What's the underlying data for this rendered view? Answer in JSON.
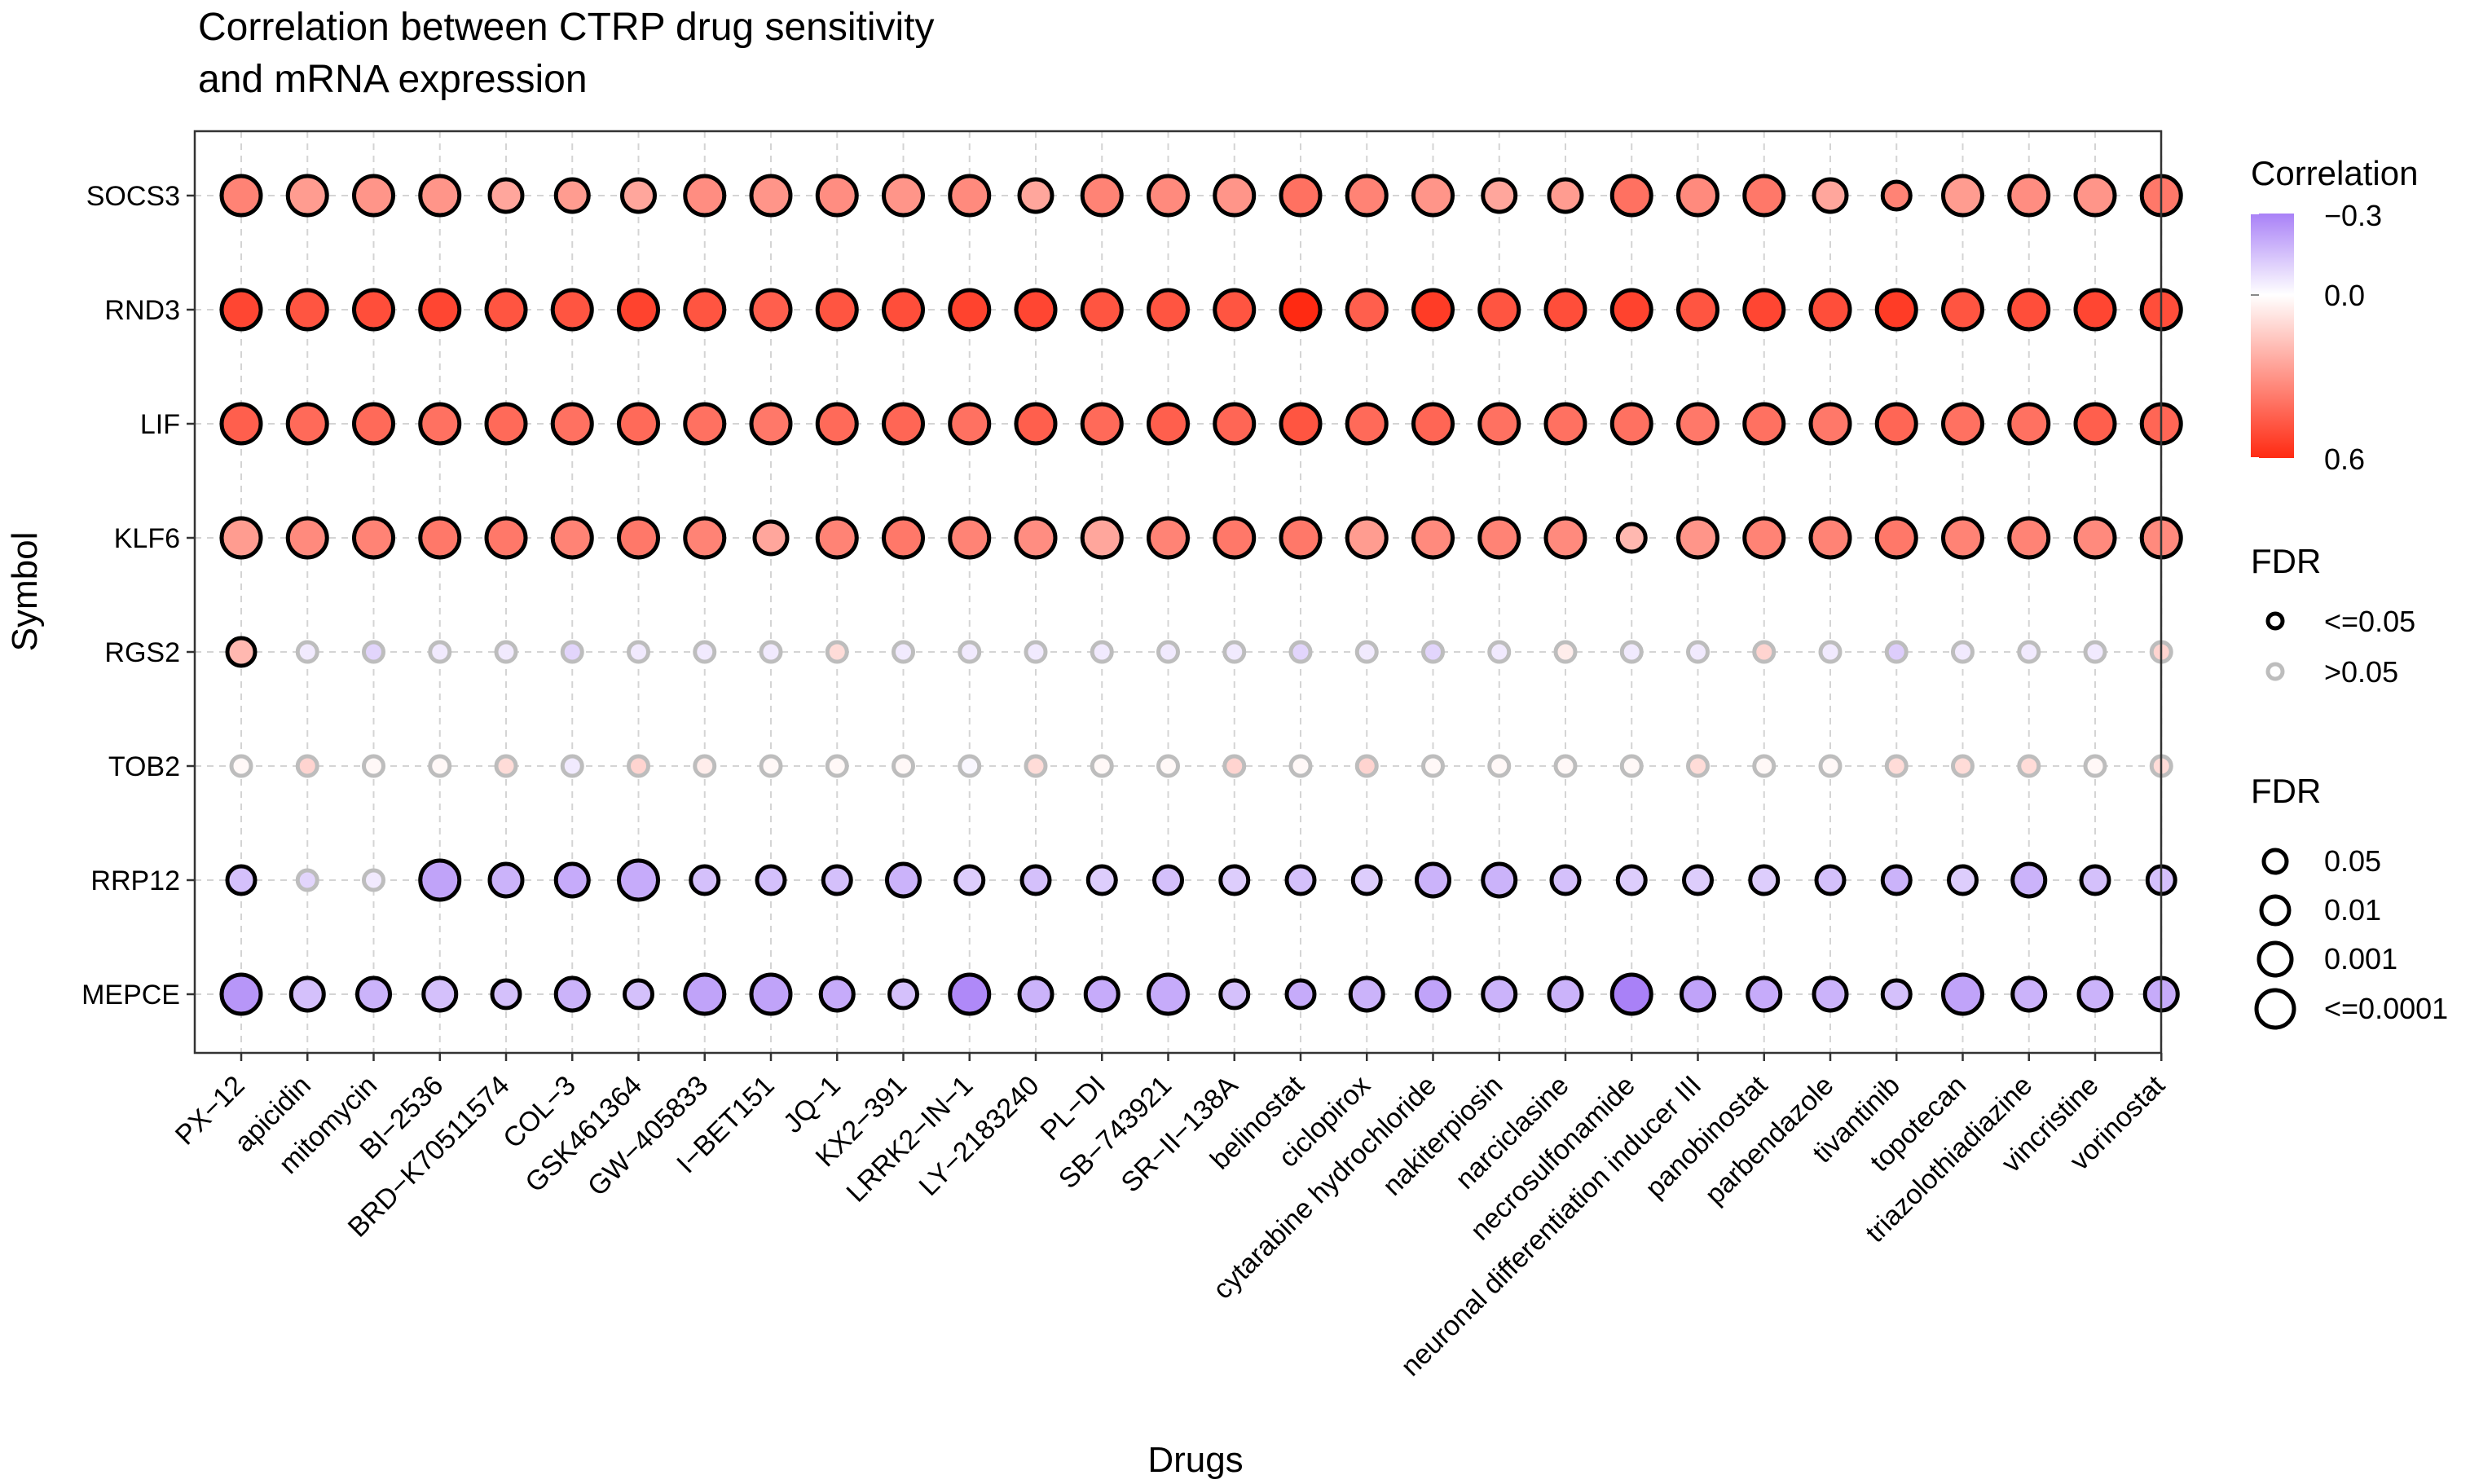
{
  "chart_data": {
    "type": "bubble",
    "title": "Correlation between CTRP drug sensitivity",
    "title_line2": "and mRNA expression",
    "xlabel": "Drugs",
    "ylabel": "Symbol",
    "drugs": [
      "PX-12",
      "apicidin",
      "mitomycin",
      "BI-2536",
      "BRD-K70511574",
      "COL-3",
      "GSK461364",
      "GW-405833",
      "I-BET151",
      "JQ-1",
      "KX2-391",
      "LRRK2-IN-1",
      "LY-2183240",
      "PL-DI",
      "SB-743921",
      "SR-II-138A",
      "belinostat",
      "ciclopirox",
      "cytarabine hydrochloride",
      "nakiterpiosin",
      "narciclasine",
      "necrosulfonamide",
      "neuronal differentiation inducer III",
      "panobinostat",
      "parbendazole",
      "tivantinib",
      "topotecan",
      "triazolothiadiazine",
      "vincristine",
      "vorinostat"
    ],
    "drug_labels": [
      "PX−12",
      "apicidin",
      "mitomycin",
      "BI−2536",
      "BRD−K70511574",
      "COL−3",
      "GSK461364",
      "GW−405833",
      "I−BET151",
      "JQ−1",
      "KX2−391",
      "LRRK2−IN−1",
      "LY−2183240",
      "PL−DI",
      "SB−743921",
      "SR−II−138A",
      "belinostat",
      "ciclopirox",
      "cytarabine hydrochloride",
      "nakiterpiosin",
      "narciclasine",
      "necrosulfonamide",
      "neuronal differentiation inducer III",
      "panobinostat",
      "parbendazole",
      "tivantinib",
      "topotecan",
      "triazolothiadiazine",
      "vincristine",
      "vorinostat"
    ],
    "symbols": [
      "SOCS3",
      "RND3",
      "LIF",
      "KLF6",
      "RGS2",
      "TOB2",
      "RRP12",
      "MEPCE"
    ],
    "correlation": [
      [
        0.35,
        0.28,
        0.3,
        0.3,
        0.25,
        0.28,
        0.25,
        0.32,
        0.3,
        0.32,
        0.3,
        0.33,
        0.25,
        0.35,
        0.33,
        0.3,
        0.4,
        0.35,
        0.3,
        0.25,
        0.28,
        0.4,
        0.33,
        0.38,
        0.25,
        0.35,
        0.28,
        0.32,
        0.3,
        0.38
      ],
      [
        0.52,
        0.48,
        0.5,
        0.52,
        0.48,
        0.48,
        0.53,
        0.48,
        0.45,
        0.48,
        0.5,
        0.53,
        0.52,
        0.48,
        0.48,
        0.48,
        0.6,
        0.45,
        0.55,
        0.48,
        0.5,
        0.53,
        0.48,
        0.52,
        0.5,
        0.55,
        0.48,
        0.5,
        0.52,
        0.5
      ],
      [
        0.45,
        0.42,
        0.42,
        0.4,
        0.42,
        0.4,
        0.42,
        0.4,
        0.38,
        0.42,
        0.43,
        0.4,
        0.45,
        0.42,
        0.45,
        0.43,
        0.48,
        0.42,
        0.43,
        0.4,
        0.4,
        0.4,
        0.38,
        0.4,
        0.38,
        0.43,
        0.4,
        0.4,
        0.45,
        0.43
      ],
      [
        0.28,
        0.33,
        0.35,
        0.38,
        0.38,
        0.35,
        0.38,
        0.35,
        0.25,
        0.35,
        0.38,
        0.35,
        0.32,
        0.25,
        0.35,
        0.38,
        0.38,
        0.28,
        0.33,
        0.35,
        0.33,
        0.2,
        0.3,
        0.35,
        0.35,
        0.38,
        0.35,
        0.35,
        0.33,
        0.33
      ],
      [
        0.2,
        -0.05,
        -0.1,
        -0.05,
        -0.05,
        -0.1,
        -0.05,
        -0.05,
        -0.05,
        0.1,
        -0.05,
        -0.05,
        -0.05,
        -0.05,
        -0.05,
        -0.05,
        -0.1,
        -0.05,
        -0.1,
        -0.05,
        0.05,
        -0.05,
        -0.05,
        0.12,
        -0.05,
        -0.12,
        -0.05,
        -0.05,
        -0.05,
        0.12
      ],
      [
        0.02,
        0.12,
        0.02,
        0.02,
        0.1,
        -0.05,
        0.12,
        0.05,
        0.02,
        0.02,
        0.02,
        -0.02,
        0.1,
        0.02,
        0.02,
        0.12,
        0.02,
        0.12,
        0.02,
        0.02,
        0.02,
        0.02,
        0.1,
        0.02,
        0.02,
        0.1,
        0.1,
        0.1,
        0.02,
        0.1
      ],
      [
        -0.15,
        -0.1,
        -0.05,
        -0.22,
        -0.18,
        -0.2,
        -0.2,
        -0.15,
        -0.15,
        -0.15,
        -0.18,
        -0.12,
        -0.15,
        -0.12,
        -0.15,
        -0.12,
        -0.15,
        -0.12,
        -0.18,
        -0.18,
        -0.15,
        -0.12,
        -0.12,
        -0.12,
        -0.15,
        -0.18,
        -0.12,
        -0.18,
        -0.15,
        -0.15
      ],
      [
        -0.25,
        -0.15,
        -0.18,
        -0.15,
        -0.15,
        -0.18,
        -0.15,
        -0.22,
        -0.22,
        -0.2,
        -0.15,
        -0.28,
        -0.18,
        -0.2,
        -0.2,
        -0.15,
        -0.2,
        -0.18,
        -0.22,
        -0.18,
        -0.18,
        -0.3,
        -0.22,
        -0.2,
        -0.18,
        -0.15,
        -0.22,
        -0.18,
        -0.18,
        -0.2
      ]
    ],
    "significance": [
      [
        1,
        1,
        1,
        1,
        1,
        1,
        1,
        1,
        1,
        1,
        1,
        1,
        1,
        1,
        1,
        1,
        1,
        1,
        1,
        1,
        1,
        1,
        1,
        1,
        1,
        1,
        1,
        1,
        1,
        1
      ],
      [
        1,
        1,
        1,
        1,
        1,
        1,
        1,
        1,
        1,
        1,
        1,
        1,
        1,
        1,
        1,
        1,
        1,
        1,
        1,
        1,
        1,
        1,
        1,
        1,
        1,
        1,
        1,
        1,
        1,
        1
      ],
      [
        1,
        1,
        1,
        1,
        1,
        1,
        1,
        1,
        1,
        1,
        1,
        1,
        1,
        1,
        1,
        1,
        1,
        1,
        1,
        1,
        1,
        1,
        1,
        1,
        1,
        1,
        1,
        1,
        1,
        1
      ],
      [
        1,
        1,
        1,
        1,
        1,
        1,
        1,
        1,
        1,
        1,
        1,
        1,
        1,
        1,
        1,
        1,
        1,
        1,
        1,
        1,
        1,
        1,
        1,
        1,
        1,
        1,
        1,
        1,
        1,
        1
      ],
      [
        1,
        0,
        0,
        0,
        0,
        0,
        0,
        0,
        0,
        0,
        0,
        0,
        0,
        0,
        0,
        0,
        0,
        0,
        0,
        0,
        0,
        0,
        0,
        0,
        0,
        0,
        0,
        0,
        0,
        0
      ],
      [
        0,
        0,
        0,
        0,
        0,
        0,
        0,
        0,
        0,
        0,
        0,
        0,
        0,
        0,
        0,
        0,
        0,
        0,
        0,
        0,
        0,
        0,
        0,
        0,
        0,
        0,
        0,
        0,
        0,
        0
      ],
      [
        1,
        0,
        0,
        1,
        1,
        1,
        1,
        1,
        1,
        1,
        1,
        1,
        1,
        1,
        1,
        1,
        1,
        1,
        1,
        1,
        1,
        1,
        1,
        1,
        1,
        1,
        1,
        1,
        1,
        1
      ],
      [
        1,
        1,
        1,
        1,
        1,
        1,
        1,
        1,
        1,
        1,
        1,
        1,
        1,
        1,
        1,
        1,
        1,
        1,
        1,
        1,
        1,
        1,
        1,
        1,
        1,
        1,
        1,
        1,
        1,
        1
      ]
    ],
    "fdr_level": [
      [
        4,
        4,
        4,
        4,
        3,
        3,
        3,
        4,
        4,
        4,
        4,
        4,
        3,
        4,
        4,
        4,
        4,
        4,
        4,
        3,
        3,
        4,
        4,
        4,
        3,
        2,
        4,
        4,
        4,
        4
      ],
      [
        4,
        4,
        4,
        4,
        4,
        4,
        4,
        4,
        4,
        4,
        4,
        4,
        4,
        4,
        4,
        4,
        4,
        4,
        4,
        4,
        4,
        4,
        4,
        4,
        4,
        4,
        4,
        4,
        4,
        4
      ],
      [
        4,
        4,
        4,
        4,
        4,
        4,
        4,
        4,
        4,
        4,
        4,
        4,
        4,
        4,
        4,
        4,
        4,
        4,
        4,
        4,
        4,
        4,
        4,
        4,
        4,
        4,
        4,
        4,
        4,
        4
      ],
      [
        4,
        4,
        4,
        4,
        4,
        4,
        4,
        4,
        3,
        4,
        4,
        4,
        4,
        4,
        4,
        4,
        4,
        4,
        4,
        4,
        4,
        2,
        4,
        4,
        4,
        4,
        4,
        4,
        4,
        4
      ],
      [
        2,
        1,
        1,
        1,
        1,
        1,
        1,
        1,
        1,
        1,
        1,
        1,
        1,
        1,
        1,
        1,
        1,
        1,
        1,
        1,
        1,
        1,
        1,
        1,
        1,
        1,
        1,
        1,
        1,
        1
      ],
      [
        1,
        1,
        1,
        1,
        1,
        1,
        1,
        1,
        1,
        1,
        1,
        1,
        1,
        1,
        1,
        1,
        1,
        1,
        1,
        1,
        1,
        1,
        1,
        1,
        1,
        1,
        1,
        1,
        1,
        1
      ],
      [
        2,
        1,
        1,
        4,
        3,
        3,
        4,
        2,
        2,
        2,
        3,
        2,
        2,
        2,
        2,
        2,
        2,
        2,
        3,
        3,
        2,
        2,
        2,
        2,
        2,
        2,
        2,
        3,
        2,
        2
      ],
      [
        4,
        3,
        3,
        3,
        2,
        3,
        2,
        4,
        4,
        3,
        2,
        4,
        3,
        3,
        4,
        2,
        2,
        3,
        3,
        3,
        3,
        4,
        3,
        3,
        3,
        2,
        4,
        3,
        3,
        3
      ]
    ],
    "color_scale": {
      "title": "Correlation",
      "domain": [
        -0.3,
        0.6
      ],
      "ticks": [
        "−0.3",
        "0.0",
        "0.6"
      ],
      "low_color": "#a981f7",
      "mid_color": "#ffffff",
      "high_color": "#ff2a12"
    },
    "legend_significance": {
      "title": "FDR",
      "items": [
        "<=0.05",
        ">0.05"
      ],
      "colors": [
        "#000000",
        "#bdbdbd"
      ]
    },
    "legend_size": {
      "title": "FDR",
      "items": [
        "0.05",
        "0.01",
        "0.001",
        "<=0.0001"
      ]
    }
  }
}
